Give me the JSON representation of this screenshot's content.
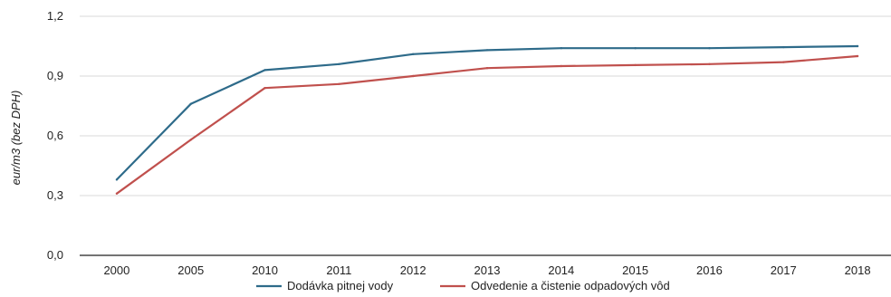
{
  "chart_data": {
    "type": "line",
    "ylabel": "eur/m3 (bez DPH)",
    "xlabel": "",
    "categories": [
      "2000",
      "2005",
      "2010",
      "2011",
      "2012",
      "2013",
      "2014",
      "2015",
      "2016",
      "2017",
      "2018"
    ],
    "y_ticks": [
      "0,0",
      "0,3",
      "0,6",
      "0,9",
      "1,2"
    ],
    "ylim": [
      0,
      1.2
    ],
    "grid": true,
    "legend_position": "bottom",
    "series": [
      {
        "name": "Dodávka pitnej vody",
        "color": "#2e6b8a",
        "values": [
          0.38,
          0.76,
          0.93,
          0.96,
          1.01,
          1.03,
          1.04,
          1.04,
          1.04,
          1.045,
          1.05
        ]
      },
      {
        "name": "Odvedenie a čistenie odpadových vôd",
        "color": "#c0504d",
        "values": [
          0.31,
          0.58,
          0.84,
          0.86,
          0.9,
          0.94,
          0.95,
          0.955,
          0.96,
          0.97,
          1.0
        ]
      }
    ]
  }
}
